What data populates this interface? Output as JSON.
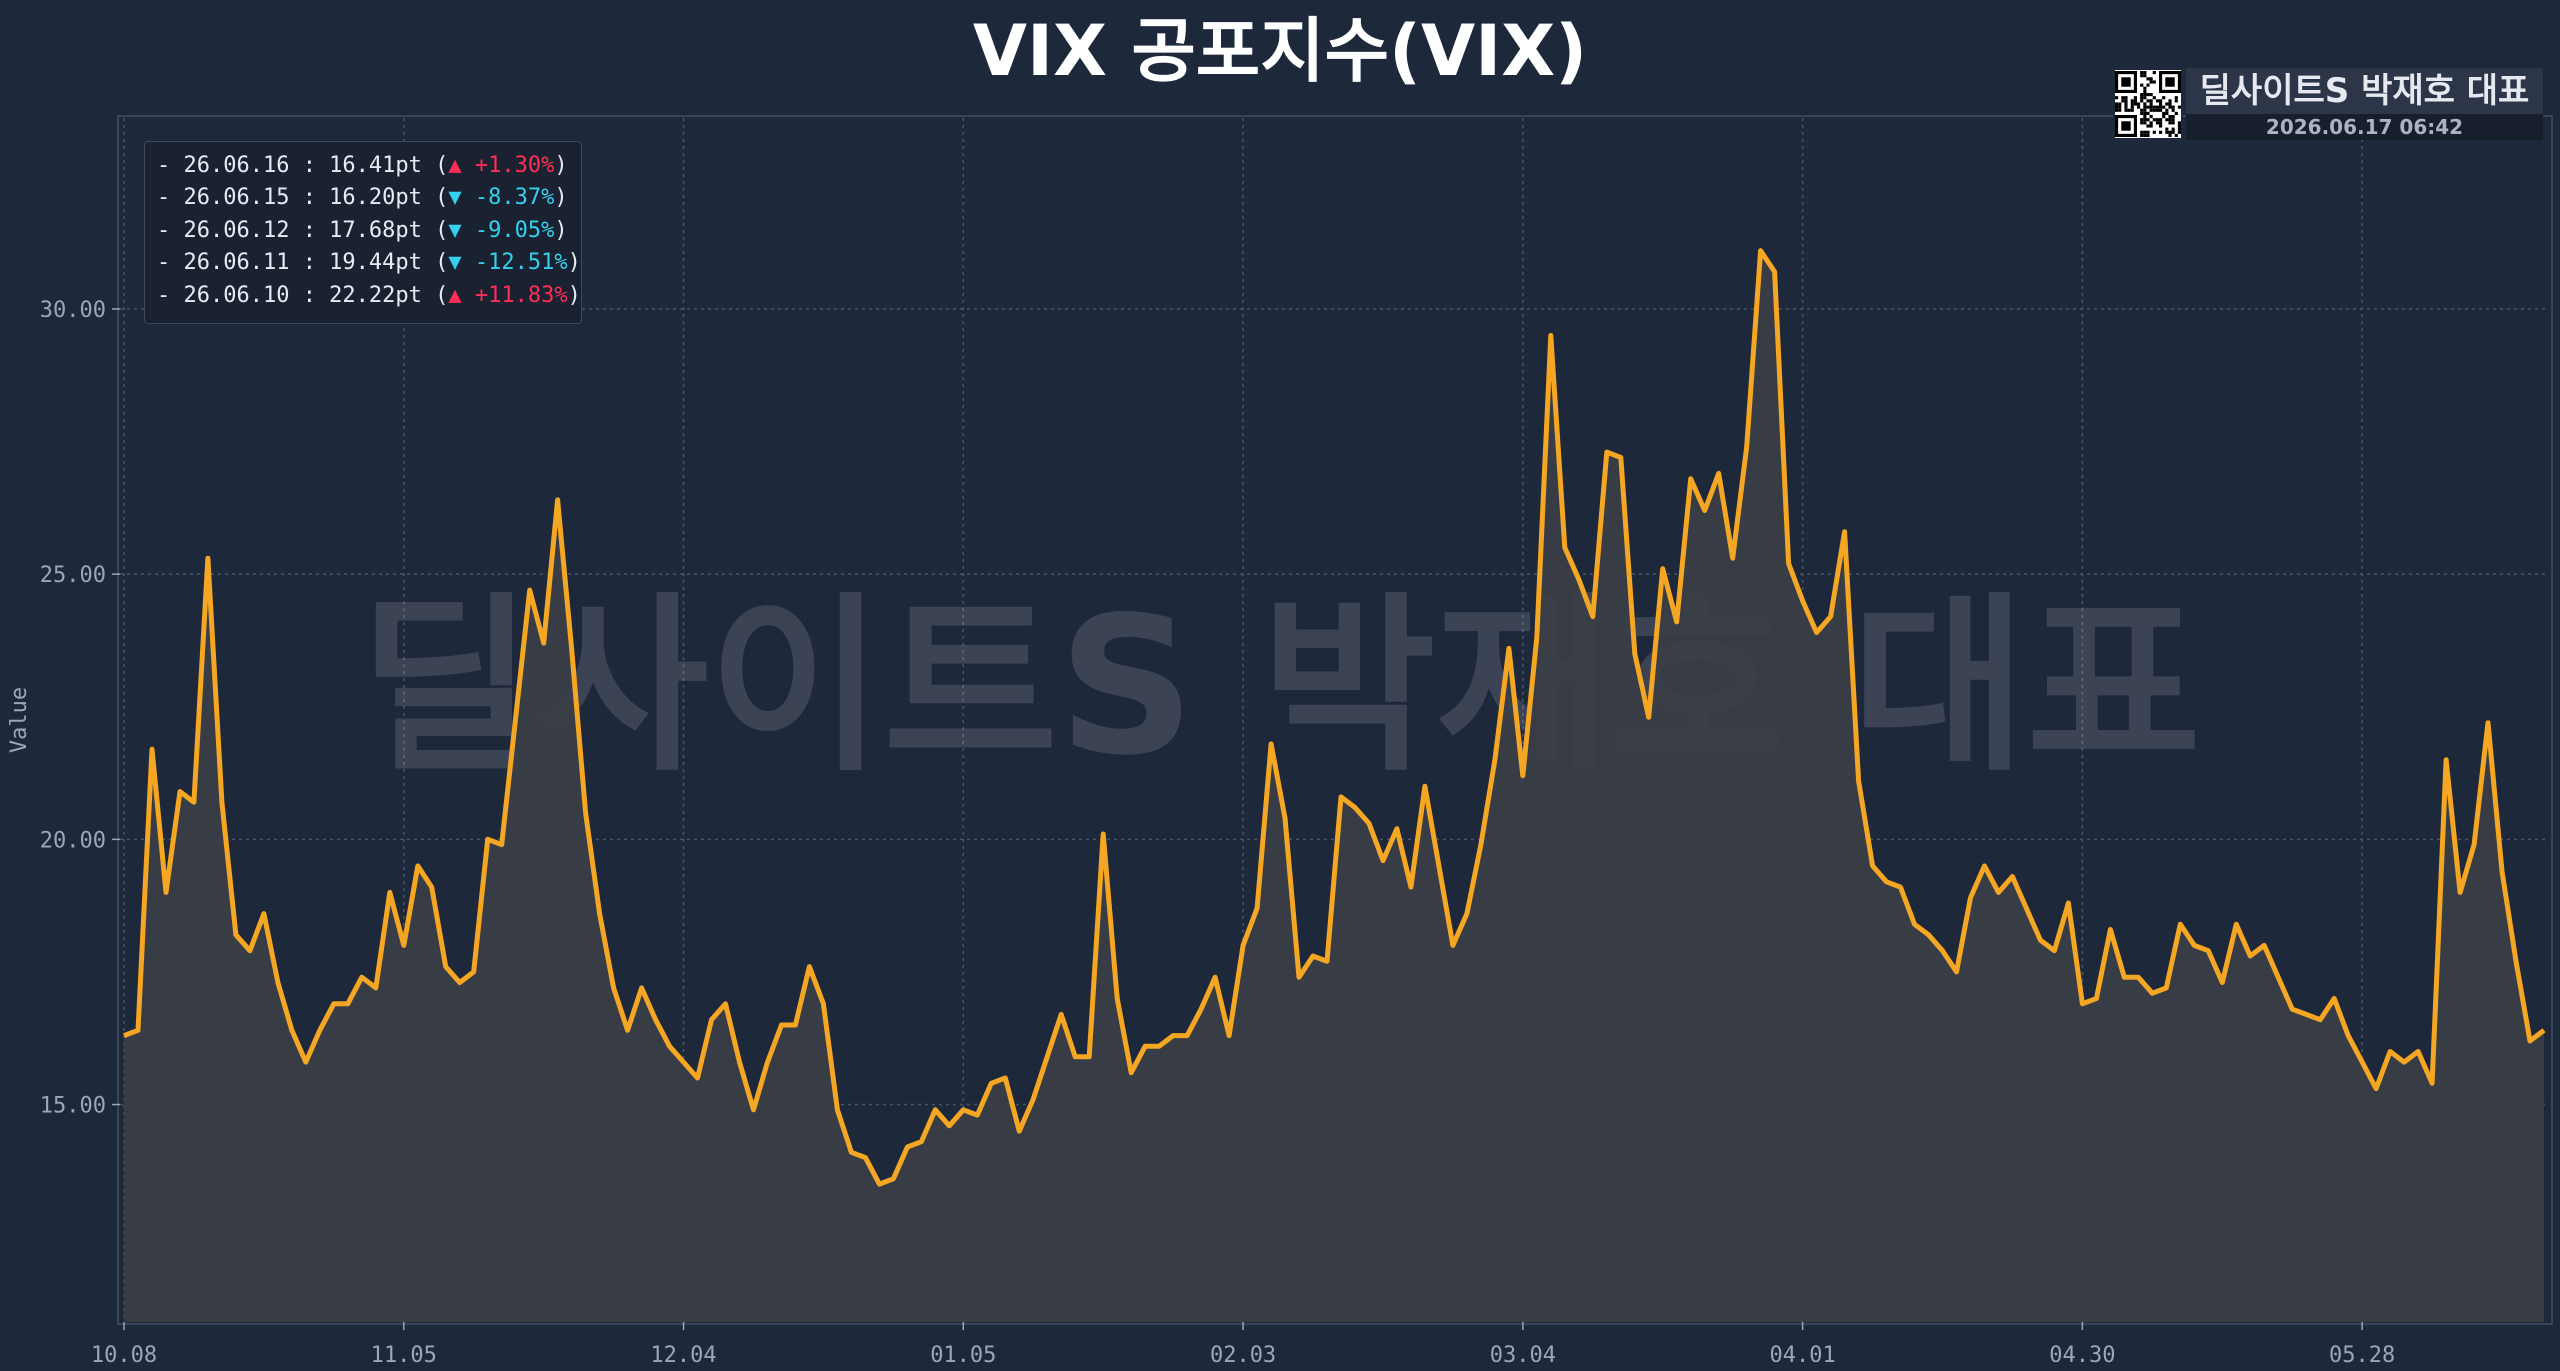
{
  "title": "VIX 공포지수(VIX)",
  "watermark": "딜사이트S 박재호 대표",
  "brand": {
    "name": "딜사이트S 박재호 대표",
    "timestamp": "2026.06.17 06:42"
  },
  "legend": [
    {
      "text": "- 26.06.16 : 16.41pt (",
      "change": "▲ +1.30%",
      "dir": "up"
    },
    {
      "text": "- 26.06.15 : 16.20pt (",
      "change": "▼ -8.37%",
      "dir": "down"
    },
    {
      "text": "- 26.06.12 : 17.68pt (",
      "change": "▼ -9.05%",
      "dir": "down"
    },
    {
      "text": "- 26.06.11 : 19.44pt (",
      "change": "▼ -12.51%",
      "dir": "down"
    },
    {
      "text": "- 26.06.10 : 22.22pt (",
      "change": "▲ +11.83%",
      "dir": "up"
    }
  ],
  "colors": {
    "background": "#1e283b",
    "line": "#f5a623",
    "fill": "#3b3f46",
    "grid": "#4a5468",
    "up": "#ff2d55",
    "down": "#35d0ee"
  },
  "chart_data": {
    "type": "area",
    "title": "VIX 공포지수(VIX)",
    "ylabel": "Value",
    "xlabel": "",
    "ylim": [
      10.9,
      33.6
    ],
    "yticks": [
      15,
      20,
      25,
      30
    ],
    "ytick_labels": [
      "15.00",
      "20.00",
      "25.00",
      "30.00"
    ],
    "xtick_labels": [
      "10.08",
      "11.05",
      "12.04",
      "01.05",
      "02.03",
      "03.04",
      "04.01",
      "04.30",
      "05.28"
    ],
    "xtick_index": [
      0,
      20,
      40,
      60,
      80,
      100,
      120,
      140,
      160
    ],
    "grid": true,
    "values": [
      16.3,
      16.4,
      21.7,
      19.0,
      20.9,
      20.7,
      25.3,
      20.7,
      18.2,
      17.9,
      18.6,
      17.3,
      16.4,
      15.8,
      16.4,
      16.9,
      16.9,
      17.4,
      17.2,
      19.0,
      18.0,
      19.5,
      19.1,
      17.6,
      17.3,
      17.5,
      20.0,
      19.9,
      22.3,
      24.7,
      23.7,
      26.4,
      23.6,
      20.5,
      18.6,
      17.2,
      16.4,
      17.2,
      16.6,
      16.1,
      15.8,
      15.5,
      16.6,
      16.9,
      15.8,
      14.9,
      15.8,
      16.5,
      16.5,
      17.6,
      16.9,
      14.9,
      14.1,
      14.0,
      13.5,
      13.6,
      14.2,
      14.3,
      14.9,
      14.6,
      14.9,
      14.8,
      15.4,
      15.5,
      14.5,
      15.1,
      15.9,
      16.7,
      15.9,
      15.9,
      20.1,
      17.0,
      15.6,
      16.1,
      16.1,
      16.3,
      16.3,
      16.8,
      17.4,
      16.3,
      18.0,
      18.7,
      21.8,
      20.4,
      17.4,
      17.8,
      17.7,
      20.8,
      20.6,
      20.3,
      19.6,
      20.2,
      19.1,
      21.0,
      19.5,
      18.0,
      18.6,
      19.9,
      21.5,
      23.6,
      21.2,
      23.8,
      29.5,
      25.5,
      24.9,
      24.2,
      27.3,
      27.2,
      23.5,
      22.3,
      25.1,
      24.1,
      26.8,
      26.2,
      26.9,
      25.3,
      27.4,
      31.1,
      30.7,
      25.2,
      24.5,
      23.9,
      24.2,
      25.8,
      21.1,
      19.5,
      19.2,
      19.1,
      18.4,
      18.2,
      17.9,
      17.5,
      18.9,
      19.5,
      19.0,
      19.3,
      18.7,
      18.1,
      17.9,
      18.8,
      16.9,
      17.0,
      18.3,
      17.4,
      17.4,
      17.1,
      17.2,
      18.4,
      18.0,
      17.9,
      17.3,
      18.4,
      17.8,
      18.0,
      17.4,
      16.8,
      16.7,
      16.6,
      17.0,
      16.3,
      15.8,
      15.3,
      16.0,
      15.8,
      16.0,
      15.4,
      21.5,
      19.0,
      19.9,
      22.2,
      19.4,
      17.7,
      16.2,
      16.4
    ]
  }
}
